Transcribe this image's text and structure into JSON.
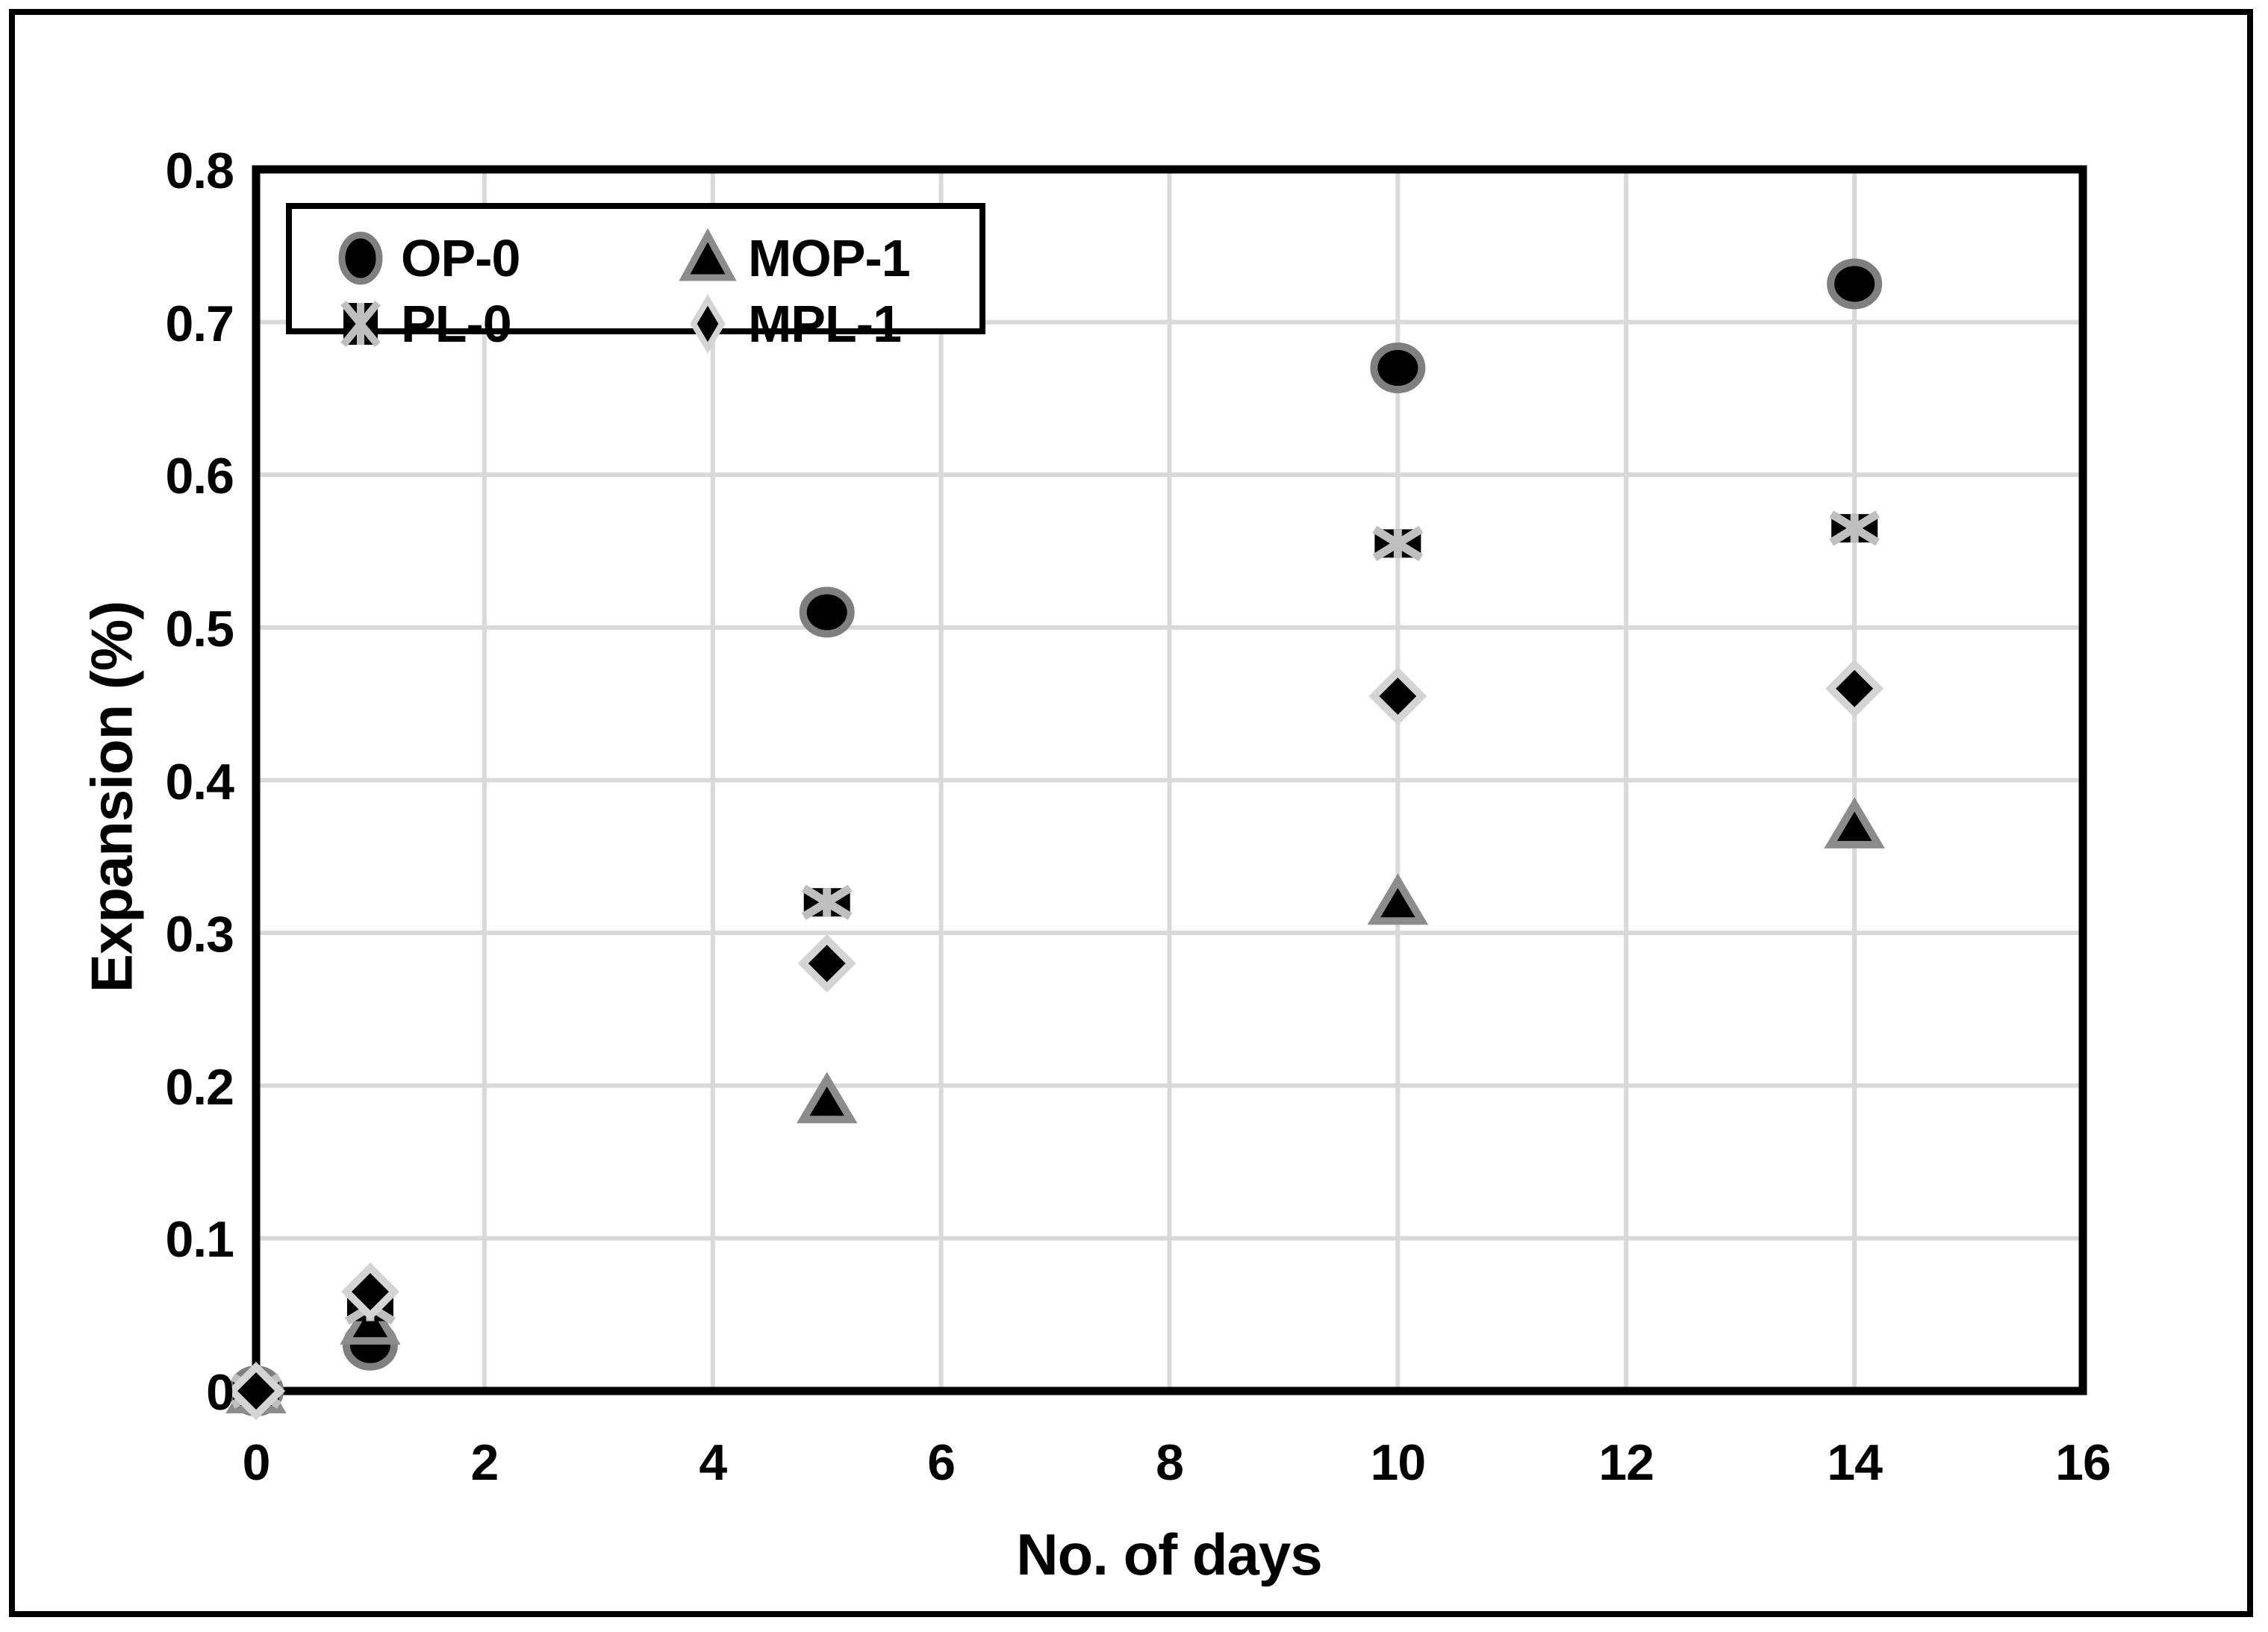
{
  "chart_data": {
    "type": "scatter",
    "title": "",
    "xlabel": "No. of days",
    "ylabel": "Expansion (%)",
    "xlim": [
      0,
      16
    ],
    "ylim": [
      0,
      0.8
    ],
    "x_ticks": [
      0,
      2,
      4,
      6,
      8,
      10,
      12,
      14,
      16
    ],
    "y_ticks": [
      "0",
      "0.1",
      "0.2",
      "0.3",
      "0.4",
      "0.5",
      "0.6",
      "0.7",
      "0.8"
    ],
    "grid": true,
    "legend_position": "inside-top-left",
    "x_shared": [
      0,
      1,
      5,
      10,
      14
    ],
    "series": [
      {
        "name": "OP-0",
        "marker": "circle",
        "x": [
          0,
          1,
          5,
          10,
          14
        ],
        "y": [
          0,
          0.03,
          0.51,
          0.67,
          0.725
        ]
      },
      {
        "name": "MOP-1",
        "marker": "triangle",
        "x": [
          0,
          1,
          5,
          10,
          14
        ],
        "y": [
          0,
          0.045,
          0.19,
          0.32,
          0.37
        ]
      },
      {
        "name": "PL-0",
        "marker": "x-square",
        "x": [
          0,
          1,
          5,
          10,
          14
        ],
        "y": [
          0,
          0.055,
          0.32,
          0.555,
          0.565
        ]
      },
      {
        "name": "MPL-1",
        "marker": "diamond",
        "x": [
          0,
          1,
          5,
          10,
          14
        ],
        "y": [
          0,
          0.065,
          0.28,
          0.455,
          0.46
        ]
      }
    ],
    "colors": {
      "marker_fill": "#000000",
      "circle_stroke": "#7f7f7f",
      "triangle_stroke": "#8c8c8c",
      "x_stroke": "#bfbfbf",
      "diamond_stroke": "#d4d4d4",
      "gridline": "#d9d9d9",
      "axis": "#000000",
      "text": "#000000"
    }
  }
}
